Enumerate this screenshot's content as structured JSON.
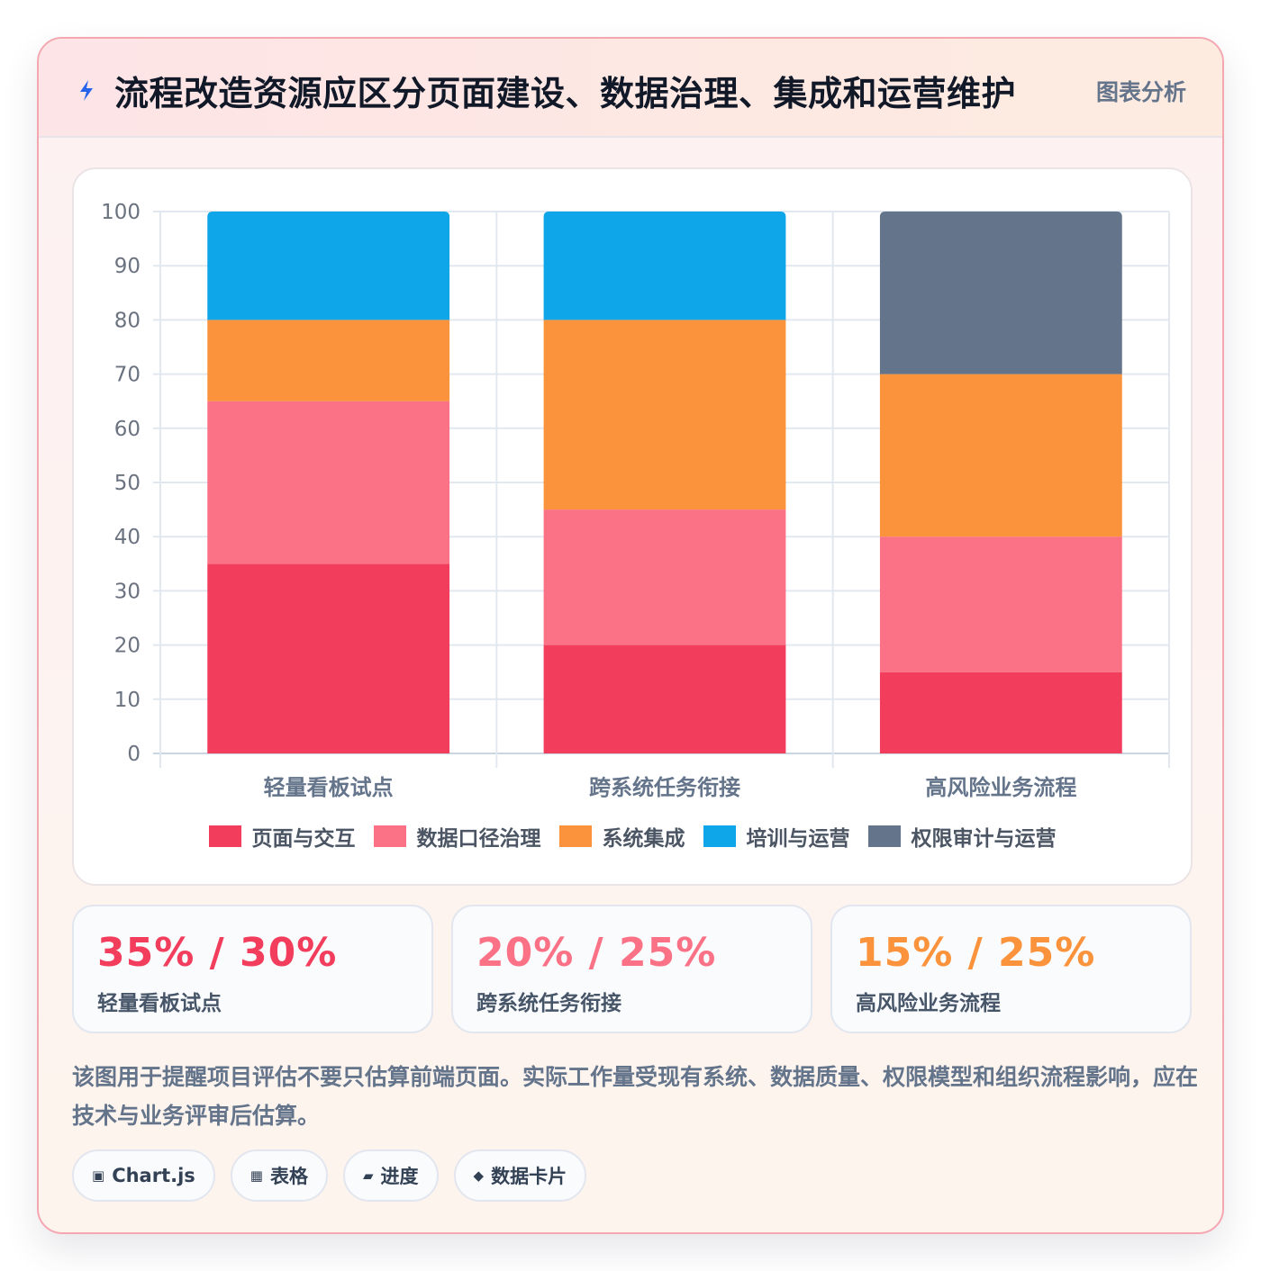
{
  "header": {
    "title": "流程改造资源应区分页面建设、数据治理、集成和运营维护",
    "tag": "图表分析",
    "icon": "lightning-bolt-icon"
  },
  "chart_data": {
    "type": "bar",
    "stacked": true,
    "categories": [
      "轻量看板试点",
      "跨系统任务衔接",
      "高风险业务流程"
    ],
    "series": [
      {
        "name": "页面与交互",
        "color": "#f23d5c",
        "values": [
          35,
          20,
          15
        ]
      },
      {
        "name": "数据口径治理",
        "color": "#fb7185",
        "values": [
          30,
          25,
          25
        ]
      },
      {
        "name": "系统集成",
        "color": "#fb923c",
        "values": [
          15,
          35,
          30
        ]
      },
      {
        "name": "培训与运营",
        "color": "#0ea5e9",
        "values": [
          20,
          20,
          0
        ]
      },
      {
        "name": "权限审计与运营",
        "color": "#64748b",
        "values": [
          0,
          0,
          30
        ]
      }
    ],
    "ylim": [
      0,
      100
    ],
    "yticks": [
      0,
      10,
      20,
      30,
      40,
      50,
      60,
      70,
      80,
      90,
      100
    ],
    "grid": true,
    "legend": "bottom",
    "xlabel": "",
    "ylabel": ""
  },
  "stats": [
    {
      "value": "35% / 30%",
      "label": "轻量看板试点",
      "color": "#f23d5c"
    },
    {
      "value": "20% / 25%",
      "label": "跨系统任务衔接",
      "color": "#fb7185"
    },
    {
      "value": "15% / 25%",
      "label": "高风险业务流程",
      "color": "#fb923c"
    }
  ],
  "description": "该图用于提醒项目评估不要只估算前端页面。实际工作量受现有系统、数据质量、权限模型和组织流程影响，应在技术与业务评审后估算。",
  "pills": [
    {
      "icon": "▣",
      "icon_name": "chart-box-icon",
      "label": "Chart.js"
    },
    {
      "icon": "▦",
      "icon_name": "table-grid-icon",
      "label": "表格"
    },
    {
      "icon": "▰",
      "icon_name": "progress-bar-icon",
      "label": "进度"
    },
    {
      "icon": "◆",
      "icon_name": "diamond-icon",
      "label": "数据卡片"
    }
  ]
}
